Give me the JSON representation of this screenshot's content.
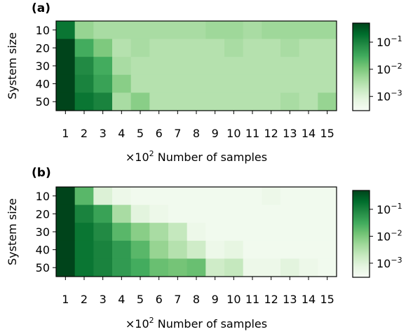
{
  "chart_data": [
    {
      "type": "heatmap",
      "panel_label": "(a)",
      "xlabel_prefix": "×10",
      "xlabel_exp": "2",
      "xlabel_text": " Number of samples",
      "ylabel": "System size",
      "x_categories": [
        "1",
        "2",
        "3",
        "4",
        "5",
        "6",
        "7",
        "8",
        "9",
        "10",
        "11",
        "12",
        "13",
        "14",
        "15"
      ],
      "y_categories": [
        "10",
        "20",
        "30",
        "40",
        "50"
      ],
      "color_scale": "log",
      "colormap": "Greens",
      "colorbar_ticks": [
        {
          "base": "10",
          "exp": "−1",
          "value": 0.1
        },
        {
          "base": "10",
          "exp": "−2",
          "value": 0.01
        },
        {
          "base": "10",
          "exp": "−3",
          "value": 0.001
        }
      ],
      "colorbar_range": [
        0.0003,
        0.5
      ],
      "values": [
        [
          0.15,
          0.006,
          0.004,
          0.004,
          0.004,
          0.004,
          0.004,
          0.004,
          0.005,
          0.005,
          0.004,
          0.005,
          0.005,
          0.005,
          0.005
        ],
        [
          0.5,
          0.03,
          0.01,
          0.003,
          0.004,
          0.003,
          0.003,
          0.003,
          0.003,
          0.004,
          0.003,
          0.003,
          0.004,
          0.003,
          0.003
        ],
        [
          0.5,
          0.08,
          0.03,
          0.004,
          0.003,
          0.003,
          0.003,
          0.003,
          0.003,
          0.003,
          0.003,
          0.003,
          0.003,
          0.003,
          0.003
        ],
        [
          0.5,
          0.1,
          0.04,
          0.008,
          0.003,
          0.003,
          0.003,
          0.003,
          0.003,
          0.003,
          0.003,
          0.003,
          0.003,
          0.003,
          0.003
        ],
        [
          0.5,
          0.15,
          0.1,
          0.004,
          0.008,
          0.003,
          0.003,
          0.003,
          0.003,
          0.003,
          0.003,
          0.003,
          0.004,
          0.003,
          0.006
        ]
      ]
    },
    {
      "type": "heatmap",
      "panel_label": "(b)",
      "xlabel_prefix": "×10",
      "xlabel_exp": "2",
      "xlabel_text": " Number of samples",
      "ylabel": "System size",
      "x_categories": [
        "1",
        "2",
        "3",
        "4",
        "5",
        "6",
        "7",
        "8",
        "9",
        "10",
        "11",
        "12",
        "13",
        "14",
        "15"
      ],
      "y_categories": [
        "10",
        "20",
        "30",
        "40",
        "50"
      ],
      "color_scale": "log",
      "colormap": "Greens",
      "colorbar_ticks": [
        {
          "base": "10",
          "exp": "−1",
          "value": 0.1
        },
        {
          "base": "10",
          "exp": "−2",
          "value": 0.01
        },
        {
          "base": "10",
          "exp": "−3",
          "value": 0.001
        }
      ],
      "colorbar_range": [
        0.0003,
        0.5
      ],
      "values": [
        [
          0.5,
          0.02,
          0.001,
          0.0005,
          0.0004,
          0.0004,
          0.0004,
          0.0004,
          0.0004,
          0.0004,
          0.0004,
          0.0005,
          0.0004,
          0.0004,
          0.0004
        ],
        [
          0.6,
          0.1,
          0.04,
          0.004,
          0.0008,
          0.0005,
          0.0004,
          0.0004,
          0.0004,
          0.0004,
          0.0004,
          0.0004,
          0.0004,
          0.0004,
          0.0004
        ],
        [
          0.7,
          0.15,
          0.08,
          0.02,
          0.008,
          0.004,
          0.002,
          0.0005,
          0.0004,
          0.0004,
          0.0004,
          0.0004,
          0.0004,
          0.0004,
          0.0004
        ],
        [
          0.7,
          0.15,
          0.1,
          0.05,
          0.02,
          0.006,
          0.003,
          0.0015,
          0.0005,
          0.0007,
          0.0004,
          0.0004,
          0.0004,
          0.0004,
          0.0004
        ],
        [
          0.8,
          0.15,
          0.1,
          0.05,
          0.03,
          0.015,
          0.012,
          0.015,
          0.0015,
          0.002,
          0.0005,
          0.0005,
          0.0008,
          0.0005,
          0.0004
        ]
      ]
    }
  ]
}
